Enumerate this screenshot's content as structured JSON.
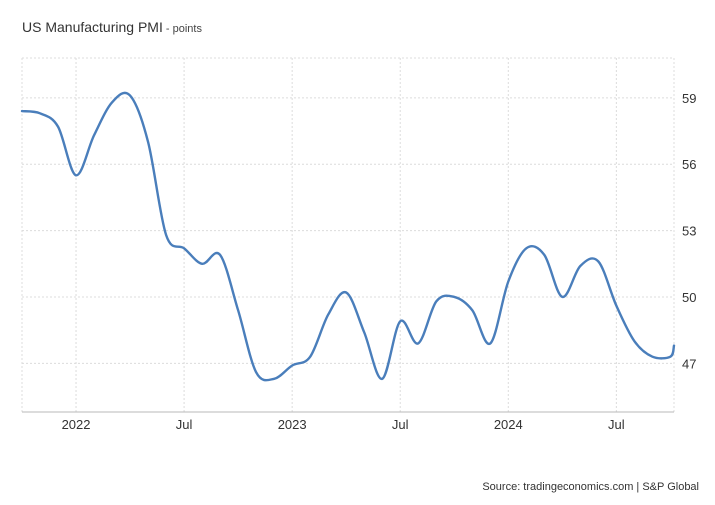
{
  "header": {
    "title": "US Manufacturing PMI",
    "unit_suffix": " - points"
  },
  "footer": {
    "source": "Source: tradingeconomics.com | S&P Global"
  },
  "chart_data": {
    "type": "line",
    "title": "US Manufacturing PMI",
    "ylabel": "points",
    "xlabel": "",
    "ylim": [
      44.8,
      60.8
    ],
    "yticks": [
      47,
      50,
      53,
      56,
      59
    ],
    "grid": true,
    "x_ticks": [
      {
        "month": 1,
        "label": "2022"
      },
      {
        "month": 7,
        "label": "Jul"
      },
      {
        "month": 13,
        "label": "2023"
      },
      {
        "month": 19,
        "label": "Jul"
      },
      {
        "month": 25,
        "label": "2024"
      },
      {
        "month": 31,
        "label": "Jul"
      }
    ],
    "xlim": [
      -2,
      34.2
    ],
    "series": [
      {
        "color": "#4a7ebb",
        "points": [
          [
            -2,
            58.4
          ],
          [
            -1,
            58.3
          ],
          [
            0,
            57.7
          ],
          [
            1,
            55.5
          ],
          [
            2,
            57.3
          ],
          [
            3,
            58.8
          ],
          [
            4,
            59.1
          ],
          [
            5,
            57.0
          ],
          [
            6,
            52.8
          ],
          [
            7,
            52.2
          ],
          [
            8,
            51.5
          ],
          [
            9,
            51.9
          ],
          [
            10,
            49.4
          ],
          [
            11,
            46.6
          ],
          [
            12,
            46.3
          ],
          [
            13,
            46.9
          ],
          [
            14,
            47.3
          ],
          [
            15,
            49.2
          ],
          [
            16,
            50.2
          ],
          [
            17,
            48.4
          ],
          [
            18,
            46.3
          ],
          [
            19,
            48.9
          ],
          [
            20,
            47.9
          ],
          [
            21,
            49.8
          ],
          [
            22,
            50.0
          ],
          [
            23,
            49.4
          ],
          [
            24,
            47.9
          ],
          [
            25,
            50.7
          ],
          [
            26,
            52.2
          ],
          [
            27,
            51.9
          ],
          [
            28,
            50.0
          ],
          [
            29,
            51.4
          ],
          [
            30,
            51.6
          ],
          [
            31,
            49.6
          ],
          [
            32,
            48.0
          ],
          [
            33,
            47.3
          ],
          [
            34,
            47.3
          ],
          [
            34.2,
            47.8
          ]
        ]
      }
    ]
  }
}
